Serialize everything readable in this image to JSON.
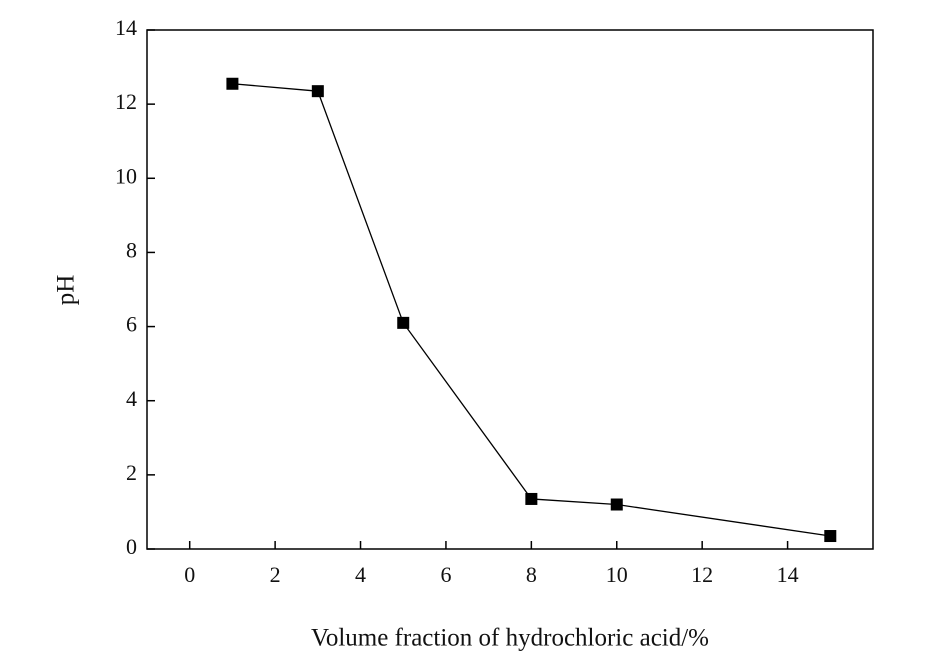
{
  "chart_data": {
    "type": "line",
    "x_label": "Volume fraction of hydrochloric acid/%",
    "y_label": "pH",
    "x": [
      1,
      3,
      5,
      8,
      10,
      15
    ],
    "series": [
      {
        "color": "#000000",
        "values": [
          12.55,
          12.35,
          6.1,
          1.35,
          1.2,
          0.35
        ]
      }
    ],
    "xlim": [
      -1,
      16
    ],
    "xticks": [
      0,
      2,
      4,
      6,
      8,
      10,
      12,
      14
    ],
    "ylim": [
      0,
      14
    ],
    "yticks": [
      0,
      2,
      4,
      6,
      8,
      10,
      12,
      14
    ],
    "grid": false
  }
}
